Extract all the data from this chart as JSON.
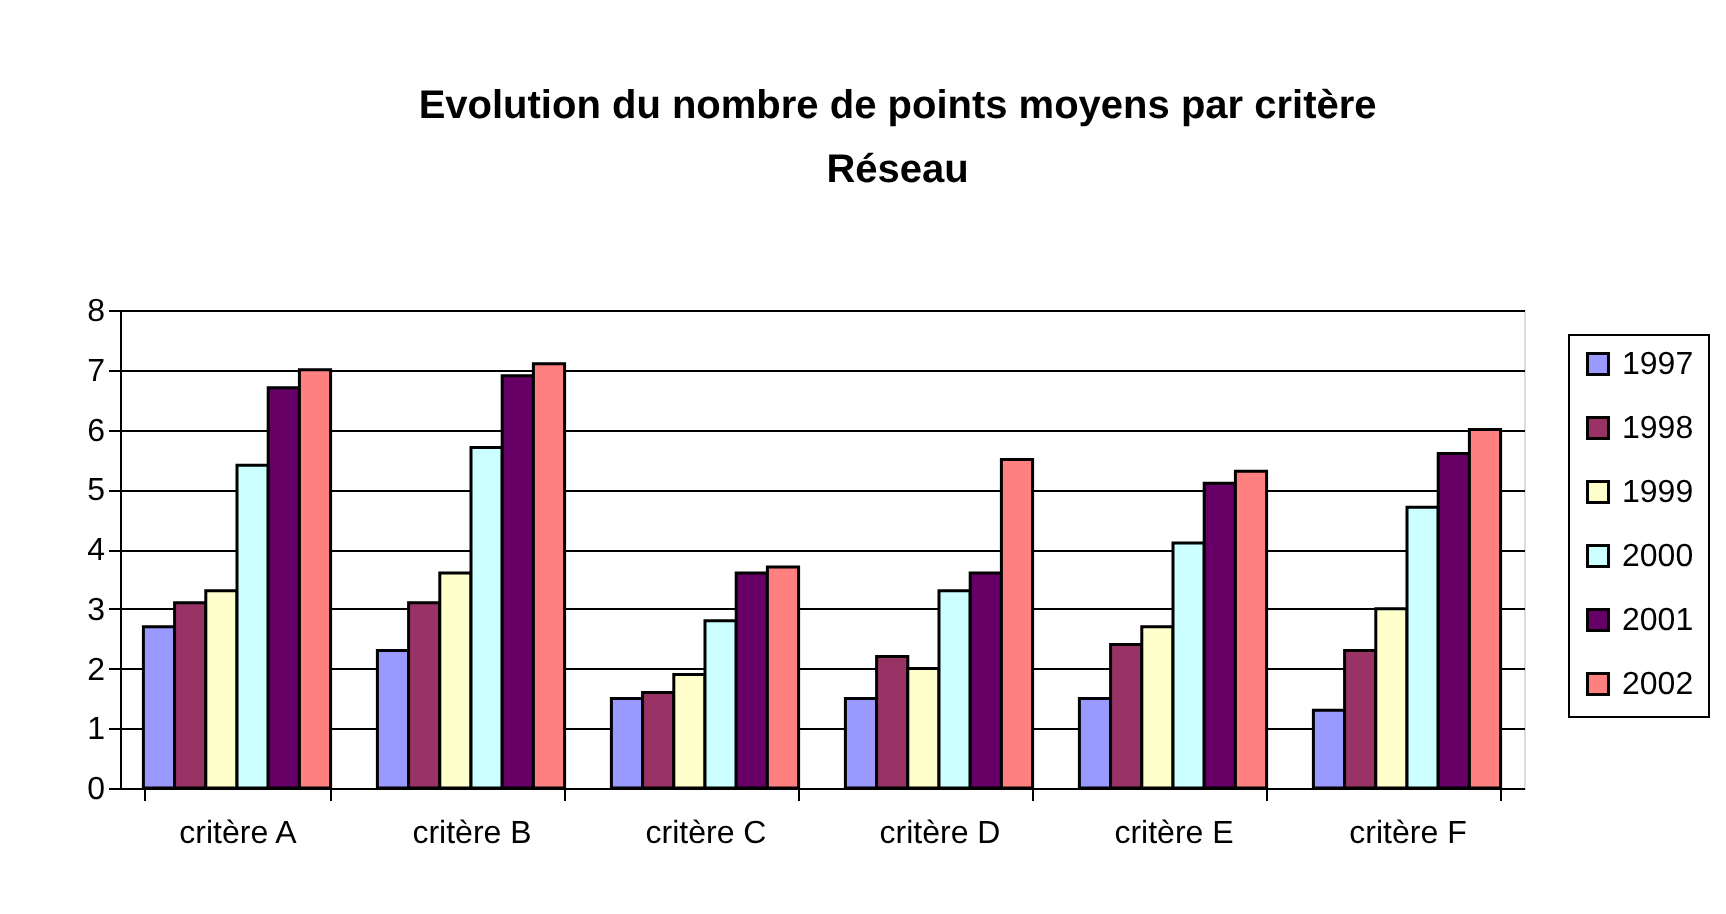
{
  "chart_data": {
    "type": "bar",
    "title": "Evolution du nombre de points moyens par critère\nRéseau",
    "categories": [
      "critère A",
      "critère B",
      "critère C",
      "critère D",
      "critère E",
      "critère F"
    ],
    "series": [
      {
        "name": "1997",
        "color": "#9999ff",
        "values": [
          2.7,
          2.3,
          1.5,
          1.5,
          1.5,
          1.3
        ]
      },
      {
        "name": "1998",
        "color": "#993366",
        "values": [
          3.1,
          3.1,
          1.6,
          2.2,
          2.4,
          2.3
        ]
      },
      {
        "name": "1999",
        "color": "#ffffcc",
        "values": [
          3.3,
          3.6,
          1.9,
          2.0,
          2.7,
          3.0
        ]
      },
      {
        "name": "2000",
        "color": "#ccffff",
        "values": [
          5.4,
          5.7,
          2.8,
          3.3,
          4.1,
          4.7
        ]
      },
      {
        "name": "2001",
        "color": "#660066",
        "values": [
          6.7,
          6.9,
          3.6,
          3.6,
          5.1,
          5.6
        ]
      },
      {
        "name": "2002",
        "color": "#ff8080",
        "values": [
          7.0,
          7.1,
          3.7,
          5.5,
          5.3,
          6.0
        ]
      }
    ],
    "ylim": [
      0,
      8
    ],
    "yticks": [
      0,
      1,
      2,
      3,
      4,
      5,
      6,
      7,
      8
    ],
    "grid": "y",
    "legend": "right"
  }
}
